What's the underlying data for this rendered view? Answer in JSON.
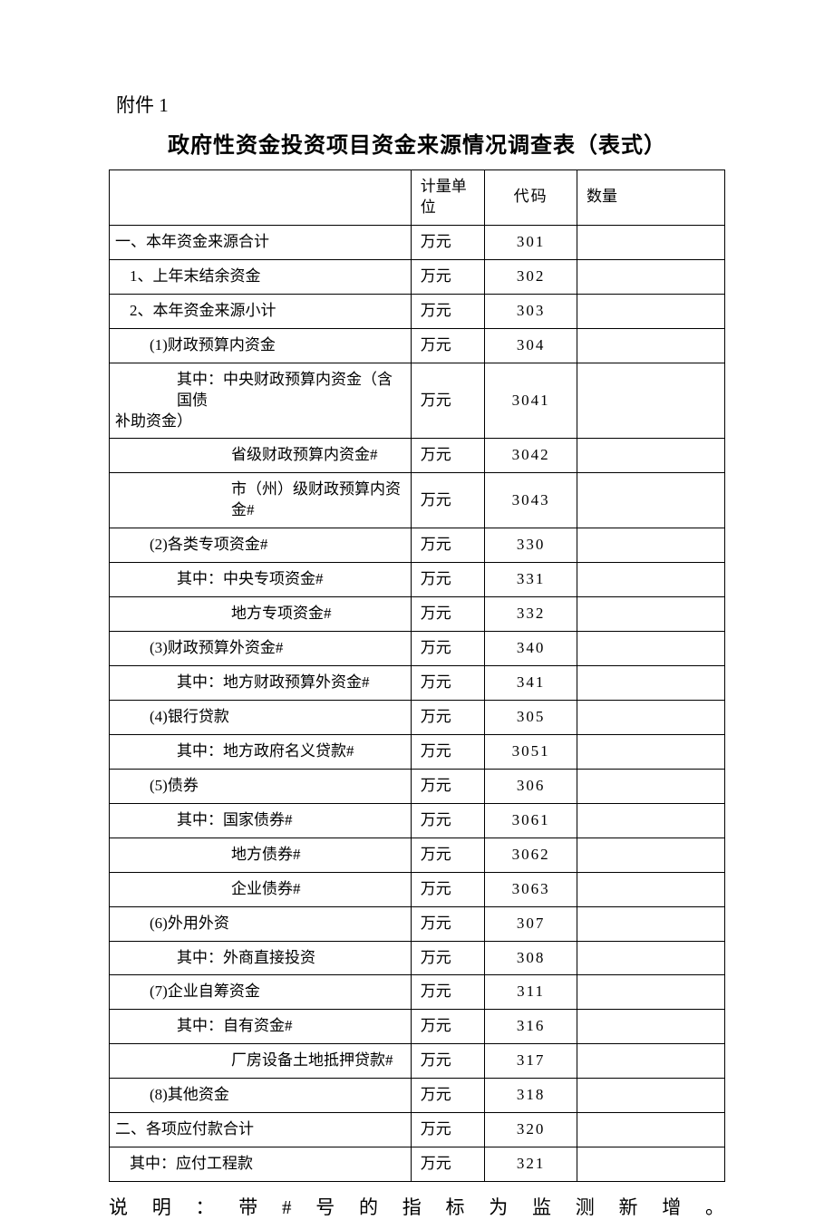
{
  "header_label": "附件 1",
  "title": "政府性资金投资项目资金来源情况调查表（表式）",
  "columns": {
    "item": "",
    "unit": "计量单位",
    "code": "代码",
    "quantity": "数量"
  },
  "rows": [
    {
      "indent": 0,
      "label": "一、本年资金来源合计",
      "unit": "万元",
      "code": "301",
      "qty": ""
    },
    {
      "indent": 1,
      "label": "1、上年末结余资金",
      "unit": "万元",
      "code": "302",
      "qty": ""
    },
    {
      "indent": 1,
      "label": "2、本年资金来源小计",
      "unit": "万元",
      "code": "303",
      "qty": ""
    },
    {
      "indent": 2,
      "label": "(1)财政预算内资金",
      "unit": "万元",
      "code": "304",
      "qty": ""
    },
    {
      "indent": 3,
      "label": "其中：中央财政预算内资金（含国债补助资金）",
      "unit": "万元",
      "code": "3041",
      "qty": "",
      "wrap": true
    },
    {
      "indent": 4,
      "label": "省级财政预算内资金#",
      "unit": "万元",
      "code": "3042",
      "qty": ""
    },
    {
      "indent": 4,
      "label": "市（州）级财政预算内资金#",
      "unit": "万元",
      "code": "3043",
      "qty": ""
    },
    {
      "indent": 2,
      "label": "(2)各类专项资金#",
      "unit": "万元",
      "code": "330",
      "qty": ""
    },
    {
      "indent": 3,
      "label": "其中：中央专项资金#",
      "unit": "万元",
      "code": "331",
      "qty": ""
    },
    {
      "indent": 4,
      "label": "地方专项资金#",
      "unit": "万元",
      "code": "332",
      "qty": ""
    },
    {
      "indent": 2,
      "label": "(3)财政预算外资金#",
      "unit": "万元",
      "code": "340",
      "qty": ""
    },
    {
      "indent": 3,
      "label": "其中：地方财政预算外资金#",
      "unit": "万元",
      "code": "341",
      "qty": ""
    },
    {
      "indent": 2,
      "label": "(4)银行贷款",
      "unit": "万元",
      "code": "305",
      "qty": ""
    },
    {
      "indent": 3,
      "label": "其中：地方政府名义贷款#",
      "unit": "万元",
      "code": "3051",
      "qty": ""
    },
    {
      "indent": 2,
      "label": "(5)债券",
      "unit": "万元",
      "code": "306",
      "qty": ""
    },
    {
      "indent": 3,
      "label": "其中：国家债券#",
      "unit": "万元",
      "code": "3061",
      "qty": ""
    },
    {
      "indent": 4,
      "label": "地方债券#",
      "unit": "万元",
      "code": "3062",
      "qty": ""
    },
    {
      "indent": 4,
      "label": "企业债券#",
      "unit": "万元",
      "code": "3063",
      "qty": ""
    },
    {
      "indent": 2,
      "label": "(6)外用外资",
      "unit": "万元",
      "code": "307",
      "qty": ""
    },
    {
      "indent": 3,
      "label": "其中：外商直接投资",
      "unit": "万元",
      "code": "308",
      "qty": ""
    },
    {
      "indent": 2,
      "label": "(7)企业自筹资金",
      "unit": "万元",
      "code": "311",
      "qty": ""
    },
    {
      "indent": 3,
      "label": "其中：自有资金#",
      "unit": "万元",
      "code": "316",
      "qty": ""
    },
    {
      "indent": 4,
      "label": "厂房设备土地抵押贷款#",
      "unit": "万元",
      "code": "317",
      "qty": ""
    },
    {
      "indent": 2,
      "label": "(8)其他资金",
      "unit": "万元",
      "code": "318",
      "qty": ""
    },
    {
      "indent": 0,
      "label": "二、各项应付款合计",
      "unit": "万元",
      "code": "320",
      "qty": ""
    },
    {
      "indent": 1,
      "label": "其中：应付工程款",
      "unit": "万元",
      "code": "321",
      "qty": ""
    }
  ],
  "note": "说明：带#号的指标为监测新增。",
  "style": {
    "page_background": "#ffffff",
    "text_color": "#000000",
    "border_color": "#000000",
    "title_fontsize": 24,
    "header_label_fontsize": 21,
    "cell_fontsize": 17,
    "note_fontsize": 21,
    "font_family": "SimSun"
  }
}
